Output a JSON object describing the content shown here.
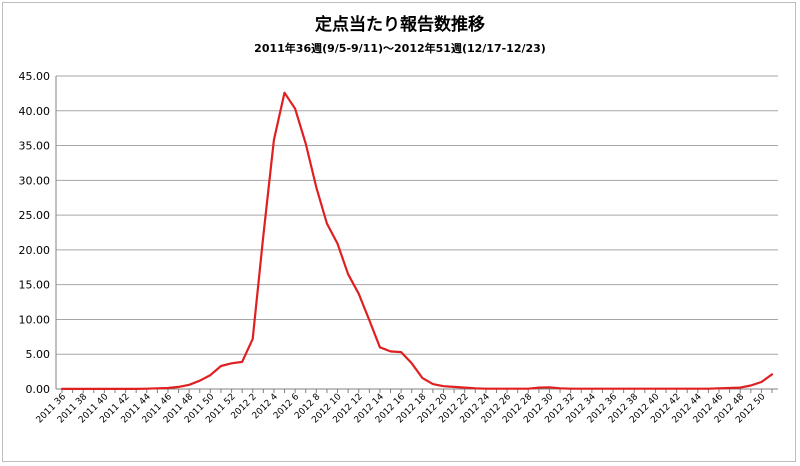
{
  "chart_data": {
    "type": "line",
    "title": "定点当たり報告数推移",
    "subtitle": "2011年36週(9/5-9/11)～2012年51週(12/17-12/23)",
    "xlabel": "",
    "ylabel": "",
    "ylim": [
      0,
      45
    ],
    "yticks": [
      "0.00",
      "5.00",
      "10.00",
      "15.00",
      "20.00",
      "25.00",
      "30.00",
      "35.00",
      "40.00",
      "45.00"
    ],
    "grid": "horizontal",
    "line_color": "#e02020",
    "x": [
      "2011 36",
      "2011 37",
      "2011 38",
      "2011 39",
      "2011 40",
      "2011 41",
      "2011 42",
      "2011 43",
      "2011 44",
      "2011 45",
      "2011 46",
      "2011 47",
      "2011 48",
      "2011 49",
      "2011 50",
      "2011 51",
      "2011 52",
      "2012 1",
      "2012 2",
      "2012 3",
      "2012 4",
      "2012 5",
      "2012 6",
      "2012 7",
      "2012 8",
      "2012 9",
      "2012 10",
      "2012 11",
      "2012 12",
      "2012 13",
      "2012 14",
      "2012 15",
      "2012 16",
      "2012 17",
      "2012 18",
      "2012 19",
      "2012 20",
      "2012 21",
      "2012 22",
      "2012 23",
      "2012 24",
      "2012 25",
      "2012 26",
      "2012 27",
      "2012 28",
      "2012 29",
      "2012 30",
      "2012 31",
      "2012 32",
      "2012 33",
      "2012 34",
      "2012 35",
      "2012 36",
      "2012 37",
      "2012 38",
      "2012 39",
      "2012 40",
      "2012 41",
      "2012 42",
      "2012 43",
      "2012 44",
      "2012 45",
      "2012 46",
      "2012 47",
      "2012 48",
      "2012 49",
      "2012 50",
      "2012 51"
    ],
    "x_tick_labels": [
      "2011 36",
      "2011 38",
      "2011 40",
      "2011 42",
      "2011 44",
      "2011 46",
      "2011 48",
      "2011 50",
      "2011 52",
      "2012 2",
      "2012 4",
      "2012 6",
      "2012 8",
      "2012 10",
      "2012 12",
      "2012 14",
      "2012 16",
      "2012 18",
      "2012 20",
      "2012 22",
      "2012 24",
      "2012 26",
      "2012 28",
      "2012 30",
      "2012 32",
      "2012 34",
      "2012 36",
      "2012 38",
      "2012 40",
      "2012 42",
      "2012 44",
      "2012 46",
      "2012 48",
      "2012 50"
    ],
    "series": [
      {
        "values": [
          0.02,
          0.01,
          0.01,
          0.01,
          0.01,
          0.01,
          0.02,
          0.02,
          0.05,
          0.1,
          0.15,
          0.3,
          0.6,
          1.2,
          2.0,
          3.3,
          3.7,
          3.9,
          7.2,
          22.0,
          35.8,
          42.6,
          40.3,
          35.3,
          29.0,
          23.8,
          20.9,
          16.5,
          13.7,
          9.9,
          6.0,
          5.4,
          5.3,
          3.7,
          1.6,
          0.7,
          0.4,
          0.3,
          0.2,
          0.1,
          0.05,
          0.05,
          0.05,
          0.05,
          0.05,
          0.2,
          0.25,
          0.1,
          0.05,
          0.05,
          0.05,
          0.05,
          0.05,
          0.05,
          0.05,
          0.05,
          0.05,
          0.05,
          0.05,
          0.05,
          0.05,
          0.05,
          0.1,
          0.15,
          0.2,
          0.5,
          1.0,
          2.1
        ]
      }
    ]
  }
}
